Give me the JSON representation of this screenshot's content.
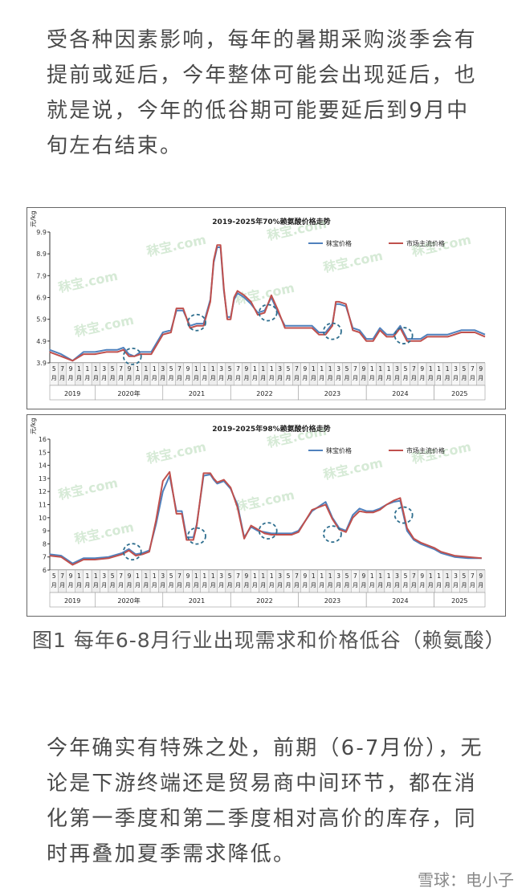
{
  "paragraph_1": "受各种因素影响，每年的暑期采购淡季会有提前或延后，今年整体可能会出现延后，也就是说，今年的低谷期可能要延后到9月中旬左右结束。",
  "caption": "图1 每年6-8月行业出现需求和价格低谷（赖氨酸）",
  "paragraph_2": "今年确实有特殊之处，前期（6-7月份），无论是下游终端还是贸易商中间环节，都在消化第一季度和第二季度相对高价的库存，同时再叠加夏季需求降低。",
  "footer": "雪球：电小子",
  "watermark": "秣宝.com",
  "colors": {
    "baozhi": "#4f81bd",
    "market": "#c0504d",
    "circle": "#2e6e8e"
  },
  "chart_data": [
    {
      "type": "line",
      "title": "2019-2025年70%赖氨酸价格走势",
      "ylabel": "元/kg",
      "ylim": [
        3.9,
        9.9
      ],
      "yticks": [
        3.9,
        4.9,
        5.9,
        6.9,
        7.9,
        8.9,
        9.9
      ],
      "grid": false,
      "legend": "top-right",
      "xlim": [
        2019.3333,
        2025.75
      ],
      "month_ticks": [
        "5",
        "7",
        "9",
        "1",
        "1",
        "1",
        "3",
        "5",
        "7",
        "9",
        "1",
        "1",
        "1",
        "3",
        "5",
        "7",
        "9",
        "1",
        "1",
        "1",
        "3",
        "5",
        "7",
        "9",
        "1",
        "1",
        "1",
        "3",
        "5",
        "7",
        "9",
        "1",
        "1",
        "1",
        "3",
        "5",
        "7",
        "9",
        "1",
        "1",
        "1",
        "3",
        "5",
        "7",
        "9",
        "1",
        "1",
        "1",
        "3",
        "5",
        "7",
        "9"
      ],
      "month_sub": [
        "月",
        "月",
        "月",
        "月",
        "月",
        "月",
        "月",
        "月",
        "月",
        "月",
        "月",
        "月",
        "月",
        "月",
        "月",
        "月",
        "月",
        "月",
        "月",
        "月",
        "月",
        "月",
        "月",
        "月",
        "月",
        "月",
        "月",
        "月",
        "月",
        "月",
        "月",
        "月",
        "月",
        "月",
        "月",
        "月",
        "月",
        "月",
        "月",
        "月",
        "月",
        "月",
        "月",
        "月",
        "月",
        "月",
        "月",
        "月",
        "月",
        "月",
        "月",
        "月"
      ],
      "years": [
        "2019",
        "2020年",
        "2021",
        "2022",
        "2023",
        "2024",
        "2025"
      ],
      "x": [
        2019.33,
        2019.5,
        2019.67,
        2019.83,
        2020.0,
        2020.17,
        2020.33,
        2020.42,
        2020.5,
        2020.58,
        2020.67,
        2020.83,
        2021.0,
        2021.12,
        2021.2,
        2021.3,
        2021.4,
        2021.5,
        2021.6,
        2021.7,
        2021.75,
        2021.8,
        2021.85,
        2021.9,
        2021.95,
        2022.0,
        2022.05,
        2022.1,
        2022.2,
        2022.3,
        2022.4,
        2022.5,
        2022.6,
        2022.7,
        2022.8,
        2022.9,
        2023.0,
        2023.1,
        2023.2,
        2023.3,
        2023.4,
        2023.5,
        2023.55,
        2023.6,
        2023.7,
        2023.8,
        2023.9,
        2024.0,
        2024.1,
        2024.2,
        2024.3,
        2024.4,
        2024.5,
        2024.6,
        2024.7,
        2024.8,
        2024.9,
        2025.0,
        2025.2,
        2025.4,
        2025.6,
        2025.75
      ],
      "series": [
        {
          "name": "秣宝价格",
          "values": [
            4.5,
            4.3,
            4.0,
            4.4,
            4.4,
            4.5,
            4.5,
            4.6,
            4.3,
            4.2,
            4.4,
            4.4,
            5.3,
            5.4,
            6.3,
            6.3,
            5.6,
            5.7,
            5.7,
            6.8,
            8.5,
            9.2,
            9.2,
            7.2,
            6.0,
            6.0,
            6.8,
            7.1,
            6.9,
            6.6,
            6.2,
            6.3,
            6.9,
            6.2,
            5.6,
            5.6,
            5.6,
            5.6,
            5.6,
            5.3,
            5.3,
            5.7,
            6.6,
            6.6,
            6.5,
            5.5,
            5.4,
            5.0,
            5.0,
            5.5,
            5.2,
            5.2,
            5.6,
            5.0,
            5.0,
            5.0,
            5.2,
            5.2,
            5.2,
            5.4,
            5.4,
            5.2
          ]
        },
        {
          "name": "市场主流价格",
          "values": [
            4.4,
            4.2,
            4.0,
            4.3,
            4.3,
            4.4,
            4.4,
            4.5,
            4.2,
            4.2,
            4.3,
            4.3,
            5.2,
            5.3,
            6.4,
            6.4,
            5.5,
            5.6,
            5.6,
            6.7,
            8.6,
            9.3,
            9.3,
            7.3,
            5.9,
            5.9,
            6.9,
            7.2,
            7.0,
            6.7,
            6.1,
            6.2,
            7.0,
            6.3,
            5.5,
            5.5,
            5.5,
            5.5,
            5.5,
            5.2,
            5.2,
            5.6,
            6.7,
            6.7,
            6.6,
            5.4,
            5.3,
            4.9,
            4.9,
            5.4,
            5.1,
            5.1,
            5.5,
            4.9,
            4.9,
            4.9,
            5.1,
            5.1,
            5.1,
            5.3,
            5.3,
            5.1
          ]
        }
      ],
      "annotations": [
        "dashed circle 2020 Jul",
        "dashed circle 2021 Jul",
        "dashed circle 2022 Jul",
        "dashed circle 2023 Jul",
        "dashed circle 2024 Jul"
      ]
    },
    {
      "type": "line",
      "title": "2019-2025年98%赖氨酸价格走势",
      "ylabel": "元/kg",
      "ylim": [
        6,
        16
      ],
      "yticks": [
        6,
        7,
        8,
        9,
        10,
        11,
        12,
        13,
        14,
        15,
        16
      ],
      "grid": false,
      "legend": "top-right",
      "xlim": [
        2019.3333,
        2025.75
      ],
      "month_ticks": [
        "5",
        "7",
        "9",
        "1",
        "1",
        "1",
        "3",
        "5",
        "7",
        "9",
        "1",
        "1",
        "1",
        "3",
        "5",
        "7",
        "9",
        "1",
        "1",
        "1",
        "3",
        "5",
        "7",
        "9",
        "1",
        "1",
        "1",
        "3",
        "5",
        "7",
        "9",
        "1",
        "1",
        "1",
        "3",
        "5",
        "7",
        "9",
        "1",
        "1",
        "1",
        "3",
        "5",
        "7",
        "9",
        "1",
        "1",
        "1",
        "3",
        "5",
        "7",
        "9"
      ],
      "month_sub": [
        "月",
        "月",
        "月",
        "月",
        "月",
        "月",
        "月",
        "月",
        "月",
        "月",
        "月",
        "月",
        "月",
        "月",
        "月",
        "月",
        "月",
        "月",
        "月",
        "月",
        "月",
        "月",
        "月",
        "月",
        "月",
        "月",
        "月",
        "月",
        "月",
        "月",
        "月",
        "月",
        "月",
        "月",
        "月",
        "月",
        "月",
        "月",
        "月",
        "月",
        "月",
        "月",
        "月",
        "月",
        "月",
        "月",
        "月",
        "月",
        "月",
        "月",
        "月",
        "月"
      ],
      "years": [
        "2019",
        "2020年",
        "2021",
        "2022",
        "2023",
        "2024",
        "2025"
      ],
      "x": [
        2019.33,
        2019.5,
        2019.67,
        2019.83,
        2020.0,
        2020.2,
        2020.4,
        2020.5,
        2020.6,
        2020.7,
        2020.8,
        2020.9,
        2021.0,
        2021.1,
        2021.2,
        2021.28,
        2021.35,
        2021.45,
        2021.5,
        2021.6,
        2021.7,
        2021.75,
        2021.8,
        2021.9,
        2022.0,
        2022.1,
        2022.2,
        2022.3,
        2022.4,
        2022.5,
        2022.6,
        2022.7,
        2022.8,
        2022.9,
        2023.0,
        2023.2,
        2023.4,
        2023.5,
        2023.6,
        2023.7,
        2023.8,
        2023.9,
        2024.0,
        2024.1,
        2024.2,
        2024.3,
        2024.4,
        2024.5,
        2024.6,
        2024.7,
        2024.8,
        2024.9,
        2025.0,
        2025.1,
        2025.3,
        2025.5,
        2025.7
      ],
      "series": [
        {
          "name": "秣宝价格",
          "values": [
            7.2,
            7.1,
            6.5,
            6.9,
            6.9,
            7.0,
            7.3,
            7.6,
            7.2,
            7.3,
            7.5,
            9.5,
            12.0,
            13.2,
            10.5,
            10.5,
            8.5,
            8.5,
            9.5,
            13.2,
            13.3,
            12.9,
            12.6,
            12.8,
            12.2,
            11.0,
            8.5,
            9.3,
            9.0,
            8.9,
            8.8,
            8.8,
            8.8,
            8.8,
            9.0,
            10.5,
            11.2,
            10.0,
            9.2,
            9.0,
            10.2,
            10.7,
            10.5,
            10.5,
            10.7,
            11.0,
            11.2,
            11.3,
            9.0,
            8.3,
            8.0,
            7.8,
            7.6,
            7.3,
            7.0,
            6.9,
            6.9
          ]
        },
        {
          "name": "市场主流价格",
          "values": [
            7.1,
            7.0,
            6.4,
            6.8,
            6.8,
            6.9,
            7.2,
            7.5,
            7.1,
            7.2,
            7.4,
            9.8,
            12.8,
            13.5,
            10.3,
            10.3,
            8.3,
            8.3,
            9.4,
            13.4,
            13.4,
            13.0,
            12.7,
            12.9,
            12.3,
            10.8,
            8.4,
            9.4,
            9.1,
            8.8,
            8.7,
            8.7,
            8.7,
            8.7,
            8.9,
            10.6,
            11.0,
            9.9,
            9.1,
            8.9,
            10.0,
            10.5,
            10.4,
            10.4,
            10.6,
            11.0,
            11.3,
            11.5,
            9.2,
            8.4,
            8.1,
            7.9,
            7.7,
            7.4,
            7.1,
            7.0,
            6.9
          ]
        }
      ],
      "annotations": [
        "dashed circle 2020 Jul",
        "dashed circle 2021 Jul",
        "dashed circle 2022 Jul",
        "dashed circle 2023 Jul",
        "dashed circle 2024 Jul"
      ]
    }
  ]
}
